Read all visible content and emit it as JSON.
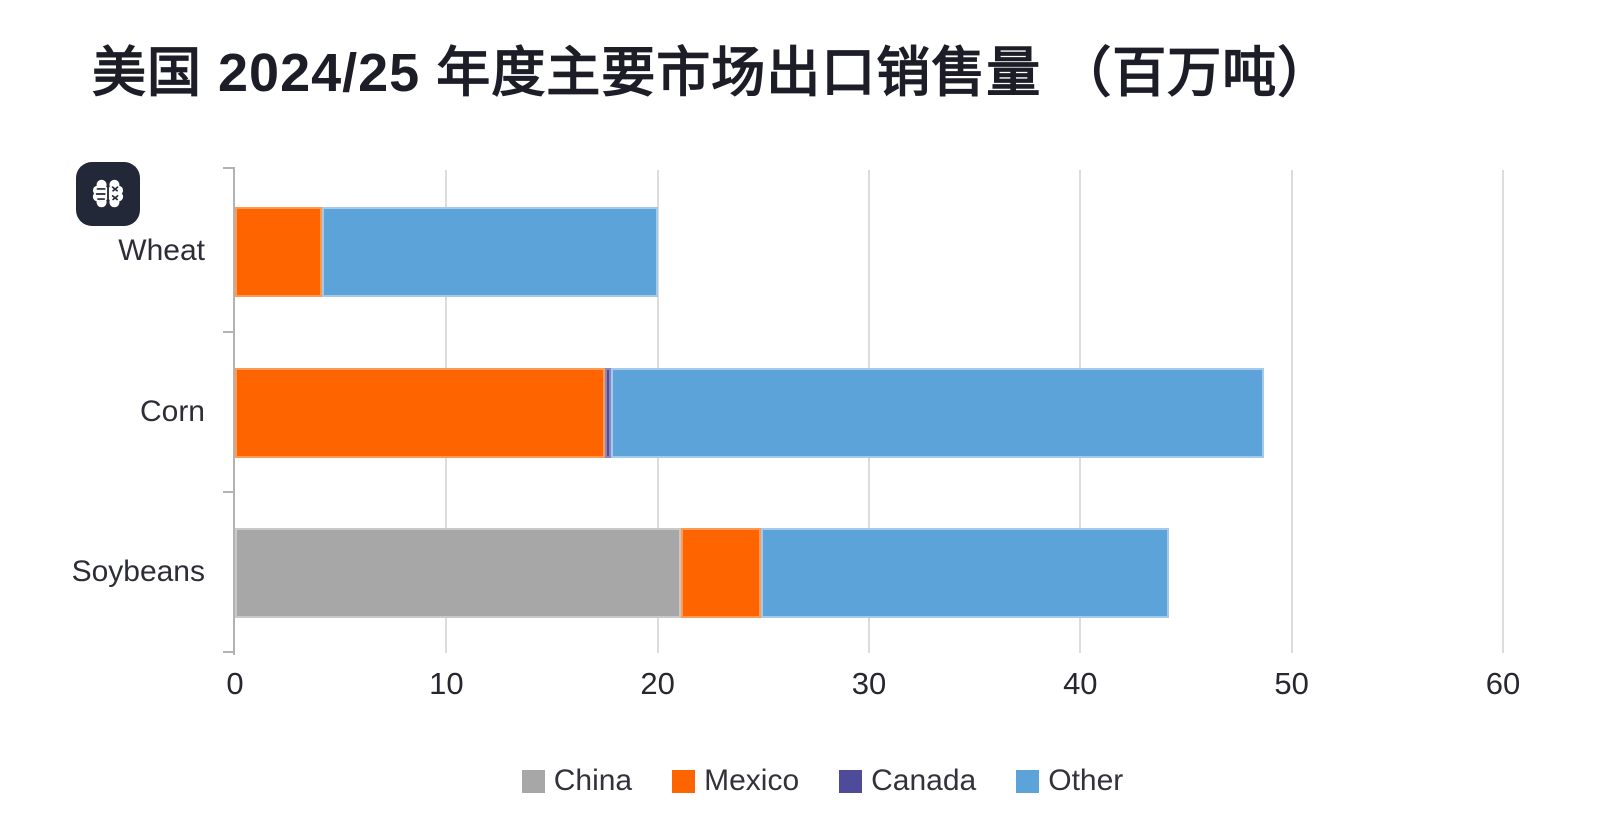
{
  "title": "美国 2024/25 年度主要市场出口销售量 （百万吨）",
  "badge": {
    "icon": "brain-icon"
  },
  "chart_data": {
    "type": "bar",
    "orientation": "horizontal",
    "stacked": true,
    "title": "美国 2024/25 年度主要市场出口销售量 （百万吨）",
    "categories": [
      "Wheat",
      "Corn",
      "Soybeans"
    ],
    "series": [
      {
        "name": "China",
        "color": "#a7a7a7",
        "border_color": "#c9c9c9",
        "values": [
          0,
          0,
          21.1
        ]
      },
      {
        "name": "Mexico",
        "color": "#fe6400",
        "border_color": "#ff9a55",
        "values": [
          4.1,
          17.5,
          3.8
        ]
      },
      {
        "name": "Canada",
        "color": "#4f4b9b",
        "border_color": "#8a87c0",
        "values": [
          0,
          0.3,
          0
        ]
      },
      {
        "name": "Other",
        "color": "#5ba3d9",
        "border_color": "#a5cae9",
        "values": [
          15.9,
          30.9,
          19.3
        ]
      }
    ],
    "totals": [
      20.0,
      48.7,
      44.2
    ],
    "x_ticks": [
      0,
      10,
      20,
      30,
      40,
      50,
      60
    ],
    "xlim": [
      0,
      60
    ],
    "grid": true,
    "legend_position": "bottom"
  }
}
